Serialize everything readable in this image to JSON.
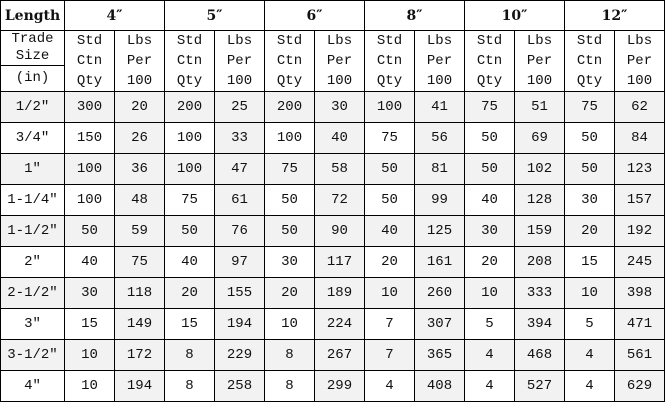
{
  "header": {
    "corner": "Length",
    "lengths": [
      "4″",
      "5″",
      "6″",
      "8″",
      "10″",
      "12″"
    ]
  },
  "subheader": {
    "trade_size_top": [
      "Trade",
      "Size"
    ],
    "trade_size_unit": "(in)",
    "qty": [
      "Std",
      "Ctn",
      "Qty"
    ],
    "lbs": [
      "Lbs",
      "Per",
      "100"
    ]
  },
  "rows": [
    {
      "size": "1/2″",
      "values": [
        "300",
        "20",
        "200",
        "25",
        "200",
        "30",
        "100",
        "41",
        "75",
        "51",
        "75",
        "62"
      ]
    },
    {
      "size": "3/4″",
      "values": [
        "150",
        "26",
        "100",
        "33",
        "100",
        "40",
        "75",
        "56",
        "50",
        "69",
        "50",
        "84"
      ]
    },
    {
      "size": "1″",
      "values": [
        "100",
        "36",
        "100",
        "47",
        "75",
        "58",
        "50",
        "81",
        "50",
        "102",
        "50",
        "123"
      ]
    },
    {
      "size": "1-1/4″",
      "values": [
        "100",
        "48",
        "75",
        "61",
        "50",
        "72",
        "50",
        "99",
        "40",
        "128",
        "30",
        "157"
      ]
    },
    {
      "size": "1-1/2″",
      "values": [
        "50",
        "59",
        "50",
        "76",
        "50",
        "90",
        "40",
        "125",
        "30",
        "159",
        "20",
        "192"
      ]
    },
    {
      "size": "2″",
      "values": [
        "40",
        "75",
        "40",
        "97",
        "30",
        "117",
        "20",
        "161",
        "20",
        "208",
        "15",
        "245"
      ]
    },
    {
      "size": "2-1/2″",
      "values": [
        "30",
        "118",
        "20",
        "155",
        "20",
        "189",
        "10",
        "260",
        "10",
        "333",
        "10",
        "398"
      ]
    },
    {
      "size": "3″",
      "values": [
        "15",
        "149",
        "15",
        "194",
        "10",
        "224",
        "7",
        "307",
        "5",
        "394",
        "5",
        "471"
      ]
    },
    {
      "size": "3-1/2″",
      "values": [
        "10",
        "172",
        "8",
        "229",
        "8",
        "267",
        "7",
        "365",
        "4",
        "468",
        "4",
        "561"
      ]
    },
    {
      "size": "4″",
      "values": [
        "10",
        "194",
        "8",
        "258",
        "8",
        "299",
        "4",
        "408",
        "4",
        "527",
        "4",
        "629"
      ]
    }
  ],
  "colors": {
    "shade": "#f2f2f2",
    "border": "#000000"
  }
}
